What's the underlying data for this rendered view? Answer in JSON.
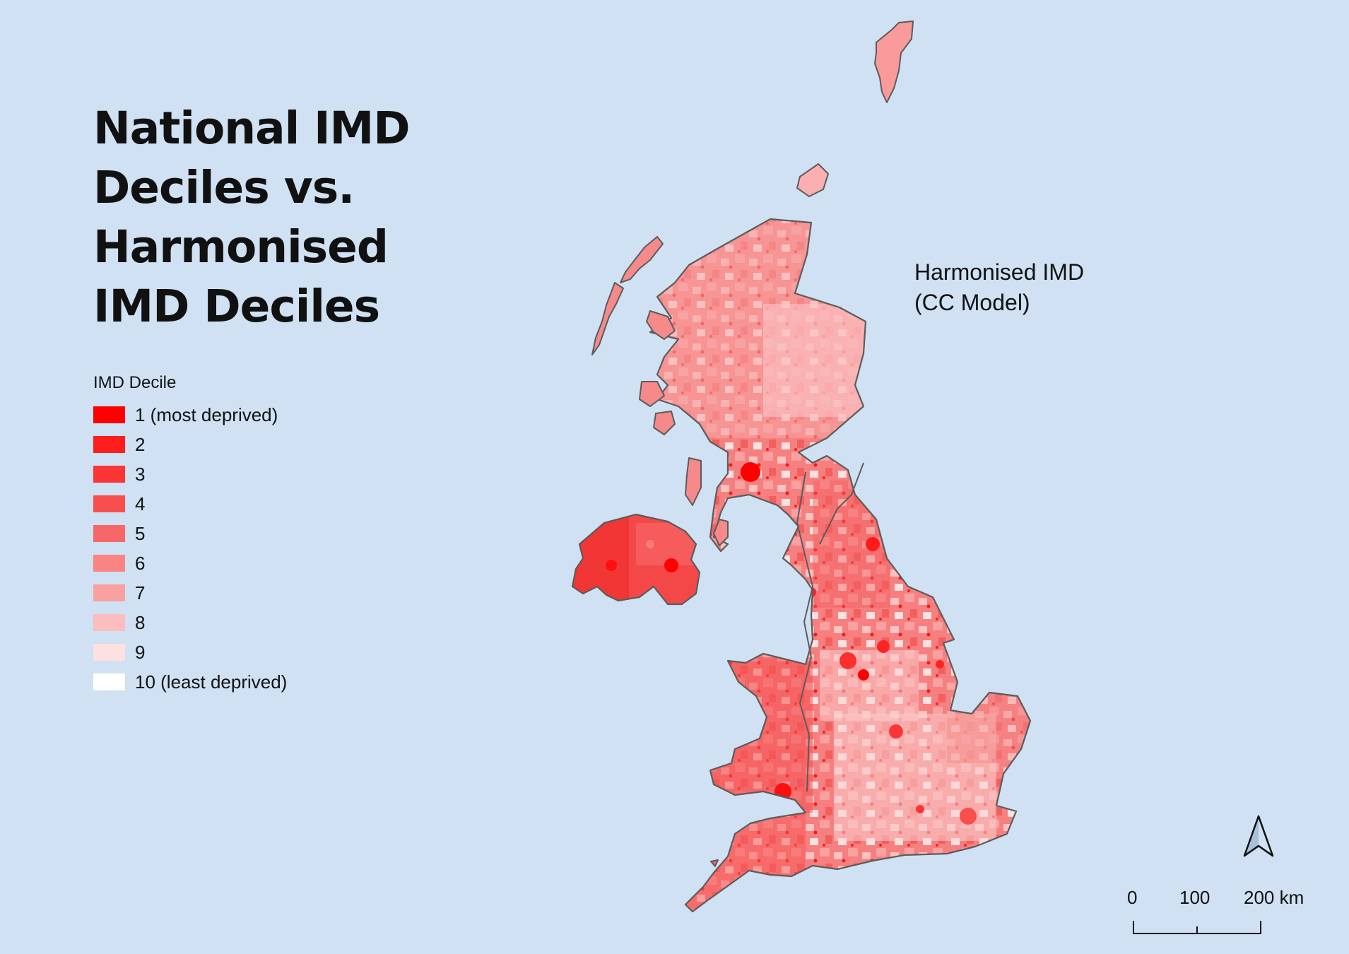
{
  "title": {
    "line1": "National IMD",
    "line2": "Deciles vs.",
    "line3": "Harmonised",
    "line4": "IMD Deciles"
  },
  "legend": {
    "title": "IMD Decile",
    "items": [
      {
        "label": "1 (most deprived)",
        "color": "#ff0000"
      },
      {
        "label": "2",
        "color": "#fd1d1d"
      },
      {
        "label": "3",
        "color": "#fb3535"
      },
      {
        "label": "4",
        "color": "#f94e4e"
      },
      {
        "label": "5",
        "color": "#f86767"
      },
      {
        "label": "6",
        "color": "#f88484"
      },
      {
        "label": "7",
        "color": "#f9a1a1"
      },
      {
        "label": "8",
        "color": "#fbbdbd"
      },
      {
        "label": "9",
        "color": "#fde0e0"
      },
      {
        "label": "10 (least deprived)",
        "color": "#ffffff"
      }
    ]
  },
  "map_label": {
    "line1": "Harmonised IMD",
    "line2": "(CC Model)"
  },
  "scale_bar": {
    "ticks": [
      "0",
      "100",
      "200 km"
    ]
  },
  "colors": {
    "background": "#cfe1f3",
    "outline": "#5c5c5c",
    "text": "#111111"
  },
  "icons": {
    "north_arrow": "north-arrow-icon"
  }
}
